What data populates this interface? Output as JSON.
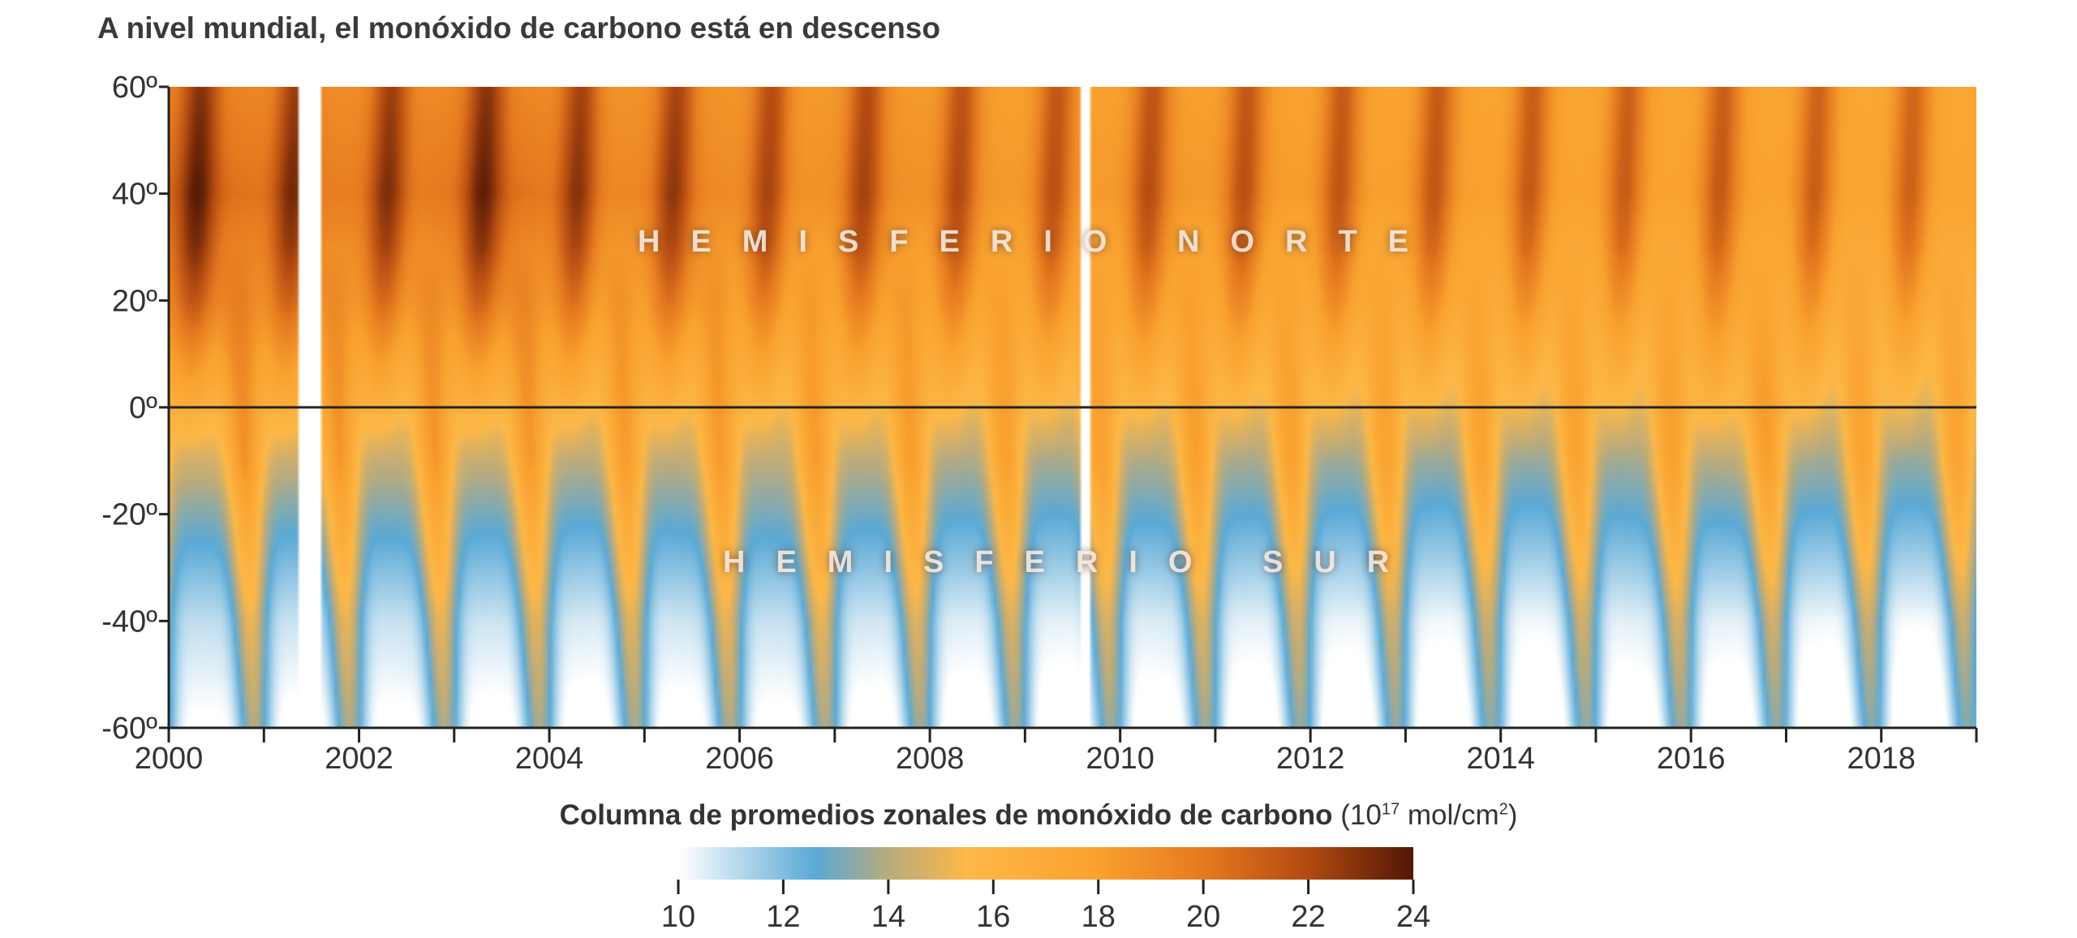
{
  "chart_data": {
    "type": "heatmap",
    "title": "A nivel mundial, el monóxido de carbono está en descenso",
    "xlabel": "",
    "ylabel": "",
    "xlim": [
      2000,
      2019
    ],
    "ylim": [
      -60,
      60
    ],
    "x_tick_labels": [
      "2000",
      "2002",
      "2004",
      "2006",
      "2008",
      "2010",
      "2012",
      "2014",
      "2016",
      "2018"
    ],
    "y_tick_labels": [
      "60º",
      "40º",
      "20º",
      "0º",
      "-20º",
      "-40º",
      "-60º"
    ],
    "y_ticks": [
      60,
      40,
      20,
      0,
      -20,
      -40,
      -60
    ],
    "annotations": [
      "HEMISFERIO NORTE",
      "HEMISFERIO SUR"
    ],
    "reference_line": {
      "y": 0,
      "color": "#222222"
    },
    "data_gaps": [
      [
        2001.35,
        2001.62
      ],
      [
        2009.58,
        2009.68
      ]
    ],
    "latitudes": [
      60,
      40,
      20,
      0,
      -20,
      -40,
      -60
    ],
    "years": [
      2000,
      2001,
      2002,
      2003,
      2004,
      2005,
      2006,
      2007,
      2008,
      2009,
      2010,
      2011,
      2012,
      2013,
      2014,
      2015,
      2016,
      2017,
      2018
    ],
    "annual_mean_values": [
      [
        21.0,
        20.5,
        20.5,
        21.0,
        20.2,
        20.3,
        19.8,
        20.0,
        19.6,
        19.5,
        19.6,
        19.5,
        19.3,
        19.3,
        19.2,
        19.1,
        19.2,
        19.0,
        18.9
      ],
      [
        22.0,
        21.3,
        21.2,
        22.0,
        20.8,
        20.9,
        20.2,
        20.5,
        20.0,
        19.8,
        20.0,
        19.8,
        19.6,
        19.6,
        19.4,
        19.3,
        19.5,
        19.2,
        19.1
      ],
      [
        20.5,
        19.8,
        19.6,
        20.2,
        19.2,
        19.4,
        18.8,
        19.0,
        18.6,
        18.4,
        18.6,
        18.3,
        18.2,
        18.1,
        18.0,
        17.9,
        18.3,
        17.8,
        17.7
      ],
      [
        17.5,
        17.2,
        17.0,
        17.2,
        16.8,
        16.9,
        16.7,
        16.8,
        16.5,
        16.4,
        16.6,
        16.4,
        16.3,
        16.2,
        16.2,
        16.3,
        17.0,
        16.2,
        16.1
      ],
      [
        14.8,
        14.6,
        14.7,
        14.6,
        14.4,
        14.6,
        14.7,
        14.5,
        14.3,
        14.2,
        14.4,
        14.2,
        14.1,
        14.0,
        14.0,
        14.3,
        14.4,
        14.1,
        14.0
      ],
      [
        12.6,
        12.4,
        12.5,
        12.4,
        12.2,
        12.4,
        12.5,
        12.3,
        12.1,
        12.0,
        12.2,
        12.0,
        11.9,
        11.8,
        11.8,
        12.1,
        12.0,
        11.8,
        11.7
      ],
      [
        11.4,
        11.2,
        11.3,
        11.2,
        11.1,
        11.2,
        11.3,
        11.1,
        11.0,
        10.9,
        11.1,
        10.9,
        10.8,
        10.8,
        10.7,
        11.0,
        10.9,
        10.7,
        10.6
      ]
    ],
    "colorbar": {
      "title": "Columna de promedios zonales de monóxido de carbono",
      "units_prefix": "(10",
      "units_exp": "17",
      "units_mid": " mol/cm",
      "units_exp2": "2",
      "units_suffix": ")",
      "range": [
        10,
        24
      ],
      "tick_labels": [
        "10",
        "12",
        "14",
        "16",
        "18",
        "20",
        "22",
        "24"
      ],
      "stops": [
        {
          "value": 10,
          "color": "#ffffff"
        },
        {
          "value": 12.6,
          "color": "#5aa9d6"
        },
        {
          "value": 14,
          "color": "#b9ab7e"
        },
        {
          "value": 15.5,
          "color": "#fdb847"
        },
        {
          "value": 18,
          "color": "#f9a12f"
        },
        {
          "value": 20,
          "color": "#e57a1f"
        },
        {
          "value": 22,
          "color": "#b24a11"
        },
        {
          "value": 24,
          "color": "#521705"
        }
      ]
    }
  }
}
